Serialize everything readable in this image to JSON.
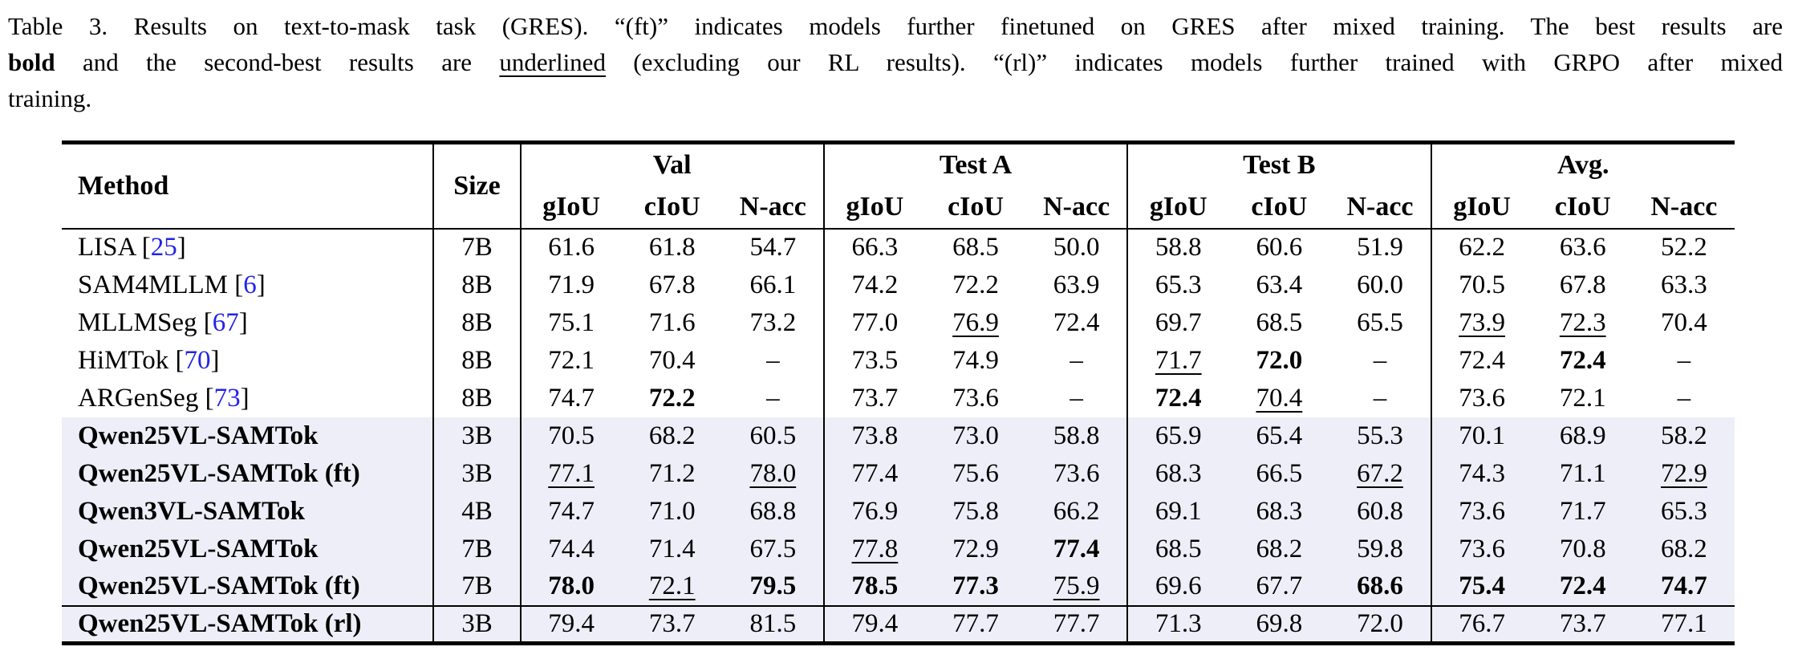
{
  "colors": {
    "citation_blue": "#2323e8",
    "row_highlight": "#eeeef8",
    "rule_black": "#000000"
  },
  "caption": {
    "lines": [
      {
        "justify": true,
        "segments": [
          {
            "text": "Table 3. Results on text-to-mask task (GRES). “(ft)” indicates models further finetuned on GRES after mixed training. The best results are",
            "style": "normal"
          }
        ]
      },
      {
        "justify": true,
        "segments": [
          {
            "text": "bold",
            "style": "bold"
          },
          {
            "text": " and the second-best results are ",
            "style": "normal"
          },
          {
            "text": "underlined",
            "style": "underline"
          },
          {
            "text": " (excluding our RL results). “(rl)” indicates models further trained with GRPO after mixed",
            "style": "normal"
          }
        ]
      },
      {
        "justify": false,
        "segments": [
          {
            "text": "training.",
            "style": "normal"
          }
        ]
      }
    ]
  },
  "table": {
    "method_header": "Method",
    "size_header": "Size",
    "groups": [
      "Val",
      "Test A",
      "Test B",
      "Avg."
    ],
    "subheaders": [
      "gIoU",
      "cIoU",
      "N-acc"
    ],
    "ref_open": "[",
    "ref_close": "]",
    "rows": [
      {
        "method": "LISA",
        "ref": "25",
        "size": "7B",
        "bold_method": false,
        "highlight": false,
        "rule_top": false,
        "values": [
          {
            "t": "61.6",
            "s": "n"
          },
          {
            "t": "61.8",
            "s": "n"
          },
          {
            "t": "54.7",
            "s": "n"
          },
          {
            "t": "66.3",
            "s": "n"
          },
          {
            "t": "68.5",
            "s": "n"
          },
          {
            "t": "50.0",
            "s": "n"
          },
          {
            "t": "58.8",
            "s": "n"
          },
          {
            "t": "60.6",
            "s": "n"
          },
          {
            "t": "51.9",
            "s": "n"
          },
          {
            "t": "62.2",
            "s": "n"
          },
          {
            "t": "63.6",
            "s": "n"
          },
          {
            "t": "52.2",
            "s": "n"
          }
        ]
      },
      {
        "method": "SAM4MLLM",
        "ref": "6",
        "size": "8B",
        "bold_method": false,
        "highlight": false,
        "rule_top": false,
        "values": [
          {
            "t": "71.9",
            "s": "n"
          },
          {
            "t": "67.8",
            "s": "n"
          },
          {
            "t": "66.1",
            "s": "n"
          },
          {
            "t": "74.2",
            "s": "n"
          },
          {
            "t": "72.2",
            "s": "n"
          },
          {
            "t": "63.9",
            "s": "n"
          },
          {
            "t": "65.3",
            "s": "n"
          },
          {
            "t": "63.4",
            "s": "n"
          },
          {
            "t": "60.0",
            "s": "n"
          },
          {
            "t": "70.5",
            "s": "n"
          },
          {
            "t": "67.8",
            "s": "n"
          },
          {
            "t": "63.3",
            "s": "n"
          }
        ]
      },
      {
        "method": "MLLMSeg",
        "ref": "67",
        "size": "8B",
        "bold_method": false,
        "highlight": false,
        "rule_top": false,
        "values": [
          {
            "t": "75.1",
            "s": "n"
          },
          {
            "t": "71.6",
            "s": "n"
          },
          {
            "t": "73.2",
            "s": "n"
          },
          {
            "t": "77.0",
            "s": "n"
          },
          {
            "t": "76.9",
            "s": "u"
          },
          {
            "t": "72.4",
            "s": "n"
          },
          {
            "t": "69.7",
            "s": "n"
          },
          {
            "t": "68.5",
            "s": "n"
          },
          {
            "t": "65.5",
            "s": "n"
          },
          {
            "t": "73.9",
            "s": "u"
          },
          {
            "t": "72.3",
            "s": "u"
          },
          {
            "t": "70.4",
            "s": "n"
          }
        ]
      },
      {
        "method": "HiMTok",
        "ref": "70",
        "size": "8B",
        "bold_method": false,
        "highlight": false,
        "rule_top": false,
        "values": [
          {
            "t": "72.1",
            "s": "n"
          },
          {
            "t": "70.4",
            "s": "n"
          },
          {
            "t": "–",
            "s": "n"
          },
          {
            "t": "73.5",
            "s": "n"
          },
          {
            "t": "74.9",
            "s": "n"
          },
          {
            "t": "–",
            "s": "n"
          },
          {
            "t": "71.7",
            "s": "u"
          },
          {
            "t": "72.0",
            "s": "b"
          },
          {
            "t": "–",
            "s": "n"
          },
          {
            "t": "72.4",
            "s": "n"
          },
          {
            "t": "72.4",
            "s": "b"
          },
          {
            "t": "–",
            "s": "n"
          }
        ]
      },
      {
        "method": "ARGenSeg",
        "ref": "73",
        "size": "8B",
        "bold_method": false,
        "highlight": false,
        "rule_top": false,
        "values": [
          {
            "t": "74.7",
            "s": "n"
          },
          {
            "t": "72.2",
            "s": "b"
          },
          {
            "t": "–",
            "s": "n"
          },
          {
            "t": "73.7",
            "s": "n"
          },
          {
            "t": "73.6",
            "s": "n"
          },
          {
            "t": "–",
            "s": "n"
          },
          {
            "t": "72.4",
            "s": "b"
          },
          {
            "t": "70.4",
            "s": "u"
          },
          {
            "t": "–",
            "s": "n"
          },
          {
            "t": "73.6",
            "s": "n"
          },
          {
            "t": "72.1",
            "s": "n"
          },
          {
            "t": "–",
            "s": "n"
          }
        ]
      },
      {
        "method": "Qwen25VL-SAMTok",
        "ref": null,
        "size": "3B",
        "bold_method": true,
        "highlight": true,
        "rule_top": false,
        "values": [
          {
            "t": "70.5",
            "s": "n"
          },
          {
            "t": "68.2",
            "s": "n"
          },
          {
            "t": "60.5",
            "s": "n"
          },
          {
            "t": "73.8",
            "s": "n"
          },
          {
            "t": "73.0",
            "s": "n"
          },
          {
            "t": "58.8",
            "s": "n"
          },
          {
            "t": "65.9",
            "s": "n"
          },
          {
            "t": "65.4",
            "s": "n"
          },
          {
            "t": "55.3",
            "s": "n"
          },
          {
            "t": "70.1",
            "s": "n"
          },
          {
            "t": "68.9",
            "s": "n"
          },
          {
            "t": "58.2",
            "s": "n"
          }
        ]
      },
      {
        "method": "Qwen25VL-SAMTok (ft)",
        "ref": null,
        "size": "3B",
        "bold_method": true,
        "highlight": true,
        "rule_top": false,
        "values": [
          {
            "t": "77.1",
            "s": "u"
          },
          {
            "t": "71.2",
            "s": "n"
          },
          {
            "t": "78.0",
            "s": "u"
          },
          {
            "t": "77.4",
            "s": "n"
          },
          {
            "t": "75.6",
            "s": "n"
          },
          {
            "t": "73.6",
            "s": "n"
          },
          {
            "t": "68.3",
            "s": "n"
          },
          {
            "t": "66.5",
            "s": "n"
          },
          {
            "t": "67.2",
            "s": "u"
          },
          {
            "t": "74.3",
            "s": "n"
          },
          {
            "t": "71.1",
            "s": "n"
          },
          {
            "t": "72.9",
            "s": "u"
          }
        ]
      },
      {
        "method": "Qwen3VL-SAMTok",
        "ref": null,
        "size": "4B",
        "bold_method": true,
        "highlight": true,
        "rule_top": false,
        "values": [
          {
            "t": "74.7",
            "s": "n"
          },
          {
            "t": "71.0",
            "s": "n"
          },
          {
            "t": "68.8",
            "s": "n"
          },
          {
            "t": "76.9",
            "s": "n"
          },
          {
            "t": "75.8",
            "s": "n"
          },
          {
            "t": "66.2",
            "s": "n"
          },
          {
            "t": "69.1",
            "s": "n"
          },
          {
            "t": "68.3",
            "s": "n"
          },
          {
            "t": "60.8",
            "s": "n"
          },
          {
            "t": "73.6",
            "s": "n"
          },
          {
            "t": "71.7",
            "s": "n"
          },
          {
            "t": "65.3",
            "s": "n"
          }
        ]
      },
      {
        "method": "Qwen25VL-SAMTok",
        "ref": null,
        "size": "7B",
        "bold_method": true,
        "highlight": true,
        "rule_top": false,
        "values": [
          {
            "t": "74.4",
            "s": "n"
          },
          {
            "t": "71.4",
            "s": "n"
          },
          {
            "t": "67.5",
            "s": "n"
          },
          {
            "t": "77.8",
            "s": "u"
          },
          {
            "t": "72.9",
            "s": "n"
          },
          {
            "t": "77.4",
            "s": "b"
          },
          {
            "t": "68.5",
            "s": "n"
          },
          {
            "t": "68.2",
            "s": "n"
          },
          {
            "t": "59.8",
            "s": "n"
          },
          {
            "t": "73.6",
            "s": "n"
          },
          {
            "t": "70.8",
            "s": "n"
          },
          {
            "t": "68.2",
            "s": "n"
          }
        ]
      },
      {
        "method": "Qwen25VL-SAMTok (ft)",
        "ref": null,
        "size": "7B",
        "bold_method": true,
        "highlight": true,
        "rule_top": false,
        "values": [
          {
            "t": "78.0",
            "s": "b"
          },
          {
            "t": "72.1",
            "s": "u"
          },
          {
            "t": "79.5",
            "s": "b"
          },
          {
            "t": "78.5",
            "s": "b"
          },
          {
            "t": "77.3",
            "s": "b"
          },
          {
            "t": "75.9",
            "s": "u"
          },
          {
            "t": "69.6",
            "s": "n"
          },
          {
            "t": "67.7",
            "s": "n"
          },
          {
            "t": "68.6",
            "s": "b"
          },
          {
            "t": "75.4",
            "s": "b"
          },
          {
            "t": "72.4",
            "s": "b"
          },
          {
            "t": "74.7",
            "s": "b"
          }
        ]
      },
      {
        "method": "Qwen25VL-SAMTok (rl)",
        "ref": null,
        "size": "3B",
        "bold_method": true,
        "highlight": true,
        "rule_top": true,
        "values": [
          {
            "t": "79.4",
            "s": "n"
          },
          {
            "t": "73.7",
            "s": "n"
          },
          {
            "t": "81.5",
            "s": "n"
          },
          {
            "t": "79.4",
            "s": "n"
          },
          {
            "t": "77.7",
            "s": "n"
          },
          {
            "t": "77.7",
            "s": "n"
          },
          {
            "t": "71.3",
            "s": "n"
          },
          {
            "t": "69.8",
            "s": "n"
          },
          {
            "t": "72.0",
            "s": "n"
          },
          {
            "t": "76.7",
            "s": "n"
          },
          {
            "t": "73.7",
            "s": "n"
          },
          {
            "t": "77.1",
            "s": "n"
          }
        ]
      }
    ]
  }
}
